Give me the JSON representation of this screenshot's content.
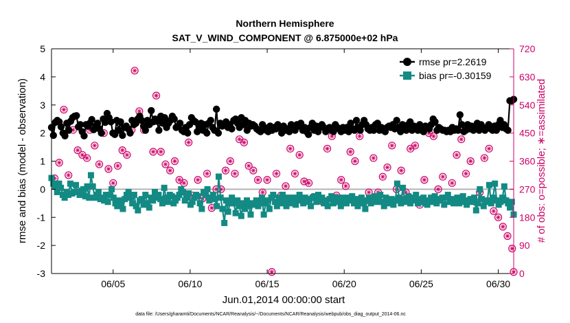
{
  "chart_data": {
    "type": "line",
    "title": "Northern Hemisphere",
    "subtitle": "SAT_V_WIND_COMPONENT @ 6.875000e+02 hPa",
    "xlabel": "Jun.01,2014 00:00:00 start",
    "ylabel": "rmse and bias (model - observation)",
    "y2label": "# of obs: o=possible; ∗=assimilated",
    "footnote": "data file: /Users/gharamti/Documents/NCAR/Reanalysis/~/Documents/NCAR/Reanalysis/webpub/obs_diag_output_2014-06.nc",
    "xlim": [
      1,
      31
    ],
    "ylim": [
      -3,
      5
    ],
    "y2lim": [
      0,
      720
    ],
    "x_ticks": [
      5,
      10,
      15,
      20,
      25,
      30
    ],
    "x_tick_labels": [
      "06/05",
      "06/10",
      "06/15",
      "06/20",
      "06/25",
      "06/30"
    ],
    "y_ticks": [
      "-3",
      "-2",
      "-1",
      "0",
      "1",
      "2",
      "3",
      "4",
      "5"
    ],
    "y2_ticks": [
      "0",
      "90",
      "180",
      "270",
      "360",
      "450",
      "540",
      "630",
      "720"
    ],
    "zero_line": 0,
    "colors": {
      "rmse": "#000000",
      "bias": "#138a84",
      "obs": "#cc0066",
      "zero": "#b3b3b3"
    },
    "series": [
      {
        "name": "rmse",
        "legend": "rmse pr=2.2619",
        "values": [
          2.2,
          1.92,
          2.38,
          2.45,
          2.4,
          2.22,
          2.0,
          1.9,
          2.35,
          2.1,
          2.42,
          2.55,
          2.6,
          2.62,
          2.22,
          2.3,
          2.05,
          1.9,
          2.3,
          2.25,
          2.35,
          2.48,
          2.12,
          2.25,
          2.35,
          2.15,
          2.0,
          2.5,
          2.38,
          2.7,
          2.55,
          2.4,
          2.0,
          1.95,
          2.45,
          2.1,
          2.4,
          1.92,
          2.2,
          2.25,
          2.15,
          2.0,
          2.45,
          2.3,
          2.35,
          2.5,
          2.6,
          2.45,
          2.25,
          2.1,
          2.45,
          2.3,
          2.8,
          2.4,
          2.5,
          2.42,
          2.1,
          2.6,
          2.35,
          2.55,
          2.2,
          2.35,
          2.45,
          2.6,
          2.5,
          2.2,
          2.25,
          2.35,
          2.1,
          2.05,
          2.2,
          2.0,
          2.3,
          2.55,
          2.45,
          2.4,
          2.05,
          2.2,
          2.35,
          2.1,
          2.3,
          2.0,
          2.35,
          2.45,
          2.2,
          2.1,
          2.85,
          2.0,
          2.35,
          2.25,
          2.3,
          2.4,
          2.2,
          2.3,
          2.15,
          2.45,
          2.5,
          2.35,
          2.2,
          2.55,
          2.3,
          2.45,
          2.1,
          2.35,
          2.25,
          2.3,
          2.25,
          2.15,
          2.1,
          2.05,
          2.3,
          2.2,
          2.1,
          2.05,
          2.25,
          2.1,
          2.2,
          2.15,
          2.3,
          2.2,
          2.0,
          2.25,
          2.1,
          2.15,
          2.05,
          2.3,
          2.25,
          2.1,
          2.3,
          2.25,
          2.35,
          2.1,
          2.2,
          2.05,
          1.95,
          2.2,
          2.35,
          2.1,
          2.25,
          2.05,
          2.2,
          2.3,
          2.2,
          2.05,
          2.15,
          2.2,
          2.1,
          2.05,
          2.3,
          2.2,
          2.15,
          2.05,
          2.2,
          2.1,
          2.2,
          2.05,
          2.35,
          2.15,
          2.1,
          2.45,
          2.2,
          2.1,
          2.3,
          2.45,
          2.3,
          2.15,
          2.1,
          2.2,
          2.1,
          2.3,
          2.35,
          2.1,
          2.2,
          2.1,
          2.05,
          2.2,
          2.25,
          2.2,
          2.3,
          2.15,
          2.45,
          2.2,
          2.05,
          2.3,
          2.2,
          2.1,
          2.3,
          2.4,
          2.1,
          2.25,
          2.2,
          2.1,
          2.3,
          2.1,
          2.05,
          2.25,
          2.2,
          2.15,
          2.3,
          2.5,
          2.4,
          2.1,
          2.2,
          2.15,
          2.1,
          2.1,
          2.05,
          2.1,
          2.05,
          2.2,
          2.1,
          2.15,
          2.1,
          2.65,
          2.3,
          2.05,
          2.1,
          2.3,
          2.15,
          2.25,
          2.1,
          2.2,
          2.35,
          2.1,
          2.3,
          2.2,
          2.1,
          2.2,
          2.3,
          2.15,
          2.1,
          2.25,
          2.1,
          2.3,
          2.45,
          2.2,
          2.3,
          2.15,
          2.1,
          3.15,
          3.15,
          3.2
        ]
      },
      {
        "name": "bias",
        "legend": "bias pr=-0.30159",
        "values": [
          0.4,
          0.2,
          0.1,
          -0.1,
          0.2,
          0.05,
          -0.2,
          -0.3,
          -0.1,
          -0.2,
          0.2,
          -0.15,
          -0.1,
          0.15,
          -0.1,
          -0.2,
          -0.05,
          0.0,
          -0.25,
          0.1,
          -0.3,
          0.5,
          0.1,
          -0.3,
          -0.2,
          -0.1,
          -0.35,
          -0.3,
          -0.4,
          -0.2,
          -0.45,
          -0.2,
          0.0,
          -0.3,
          -0.5,
          -0.6,
          -0.4,
          -0.55,
          -0.7,
          -0.35,
          -0.2,
          -0.1,
          -0.3,
          -0.5,
          -0.2,
          -0.6,
          -0.75,
          -0.4,
          -0.35,
          -0.55,
          -0.2,
          -0.5,
          -0.65,
          -0.3,
          -0.4,
          -0.1,
          -0.3,
          -0.2,
          -0.35,
          -0.5,
          0.05,
          -0.3,
          -0.45,
          -0.2,
          -0.25,
          -0.5,
          -0.4,
          -0.3,
          -0.2,
          0.0,
          -0.1,
          -0.4,
          -0.3,
          -0.15,
          -0.55,
          -0.45,
          -0.3,
          -0.2,
          -0.25,
          -0.5,
          -0.7,
          -0.1,
          -0.2,
          0.0,
          -0.4,
          -0.3,
          -0.2,
          -0.35,
          -0.6,
          0.45,
          -0.3,
          -0.7,
          -1.2,
          -0.4,
          -0.8,
          -0.5,
          -0.3,
          -0.5,
          -0.85,
          -0.4,
          -0.6,
          -0.95,
          -0.5,
          -0.7,
          -0.4,
          -0.6,
          -0.9,
          -0.5,
          -0.55,
          -0.4,
          -0.6,
          -0.5,
          -0.3,
          -0.9,
          -0.5,
          -0.4,
          -0.7,
          -0.3,
          -0.2,
          -0.45,
          -0.6,
          -0.3,
          -0.5,
          -0.2,
          -0.4,
          -0.6,
          -0.3,
          -0.5,
          -0.45,
          -0.3,
          -0.55,
          -0.35,
          -0.2,
          -0.4,
          -0.5,
          -0.3,
          -0.45,
          -0.35,
          -0.6,
          -0.3,
          -0.25,
          -0.45,
          -0.2,
          -0.4,
          -0.3,
          -0.5,
          -0.4,
          -0.6,
          -0.35,
          -0.25,
          -0.5,
          -0.4,
          -0.3,
          -0.45,
          -0.6,
          -0.3,
          -0.4,
          -0.5,
          -0.3,
          -0.4,
          -0.25,
          -0.5,
          -0.35,
          -0.6,
          -0.4,
          -0.3,
          -0.5,
          -0.7,
          -0.4,
          -0.3,
          -0.5,
          -0.35,
          -0.25,
          -0.45,
          -0.3,
          -0.2,
          -0.45,
          -0.6,
          -0.3,
          -0.4,
          -0.5,
          -0.35,
          -0.55,
          -0.4,
          0.2,
          -0.3,
          -0.5,
          0.05,
          -0.35,
          -0.45,
          -0.25,
          -0.5,
          -0.4,
          -0.3,
          -0.2,
          -0.5,
          -0.35,
          -0.45,
          -0.3,
          -0.5,
          -0.55,
          -0.4,
          -0.3,
          -0.45,
          -0.25,
          -0.5,
          -0.35,
          -0.4,
          -0.3,
          -0.55,
          -0.3,
          -0.2,
          -0.45,
          -0.35,
          -0.5,
          -0.4,
          -0.3,
          -0.5,
          -0.35,
          -0.25,
          -0.45,
          -0.55,
          -0.4,
          -0.35,
          -0.45,
          -0.3,
          -0.75,
          -0.5,
          0.0,
          -0.35,
          -0.6,
          -0.45,
          -0.4,
          0.15,
          -0.5,
          -0.3,
          0.2,
          -0.4,
          -0.55,
          -0.45,
          -0.3,
          0.1,
          -0.4,
          -0.5,
          -0.65,
          -0.45,
          -0.9
        ]
      }
    ],
    "obs_series": {
      "name": "# of obs",
      "axis": "right",
      "x": [
        1.2,
        1.5,
        1.8,
        2.1,
        2.4,
        2.7,
        3.0,
        3.3,
        3.5,
        3.8,
        4.1,
        4.4,
        4.7,
        5.0,
        5.3,
        5.6,
        5.9,
        6.2,
        6.4,
        6.7,
        7.0,
        7.3,
        7.6,
        7.8,
        8.1,
        8.4,
        8.7,
        9.0,
        9.3,
        9.6,
        9.9,
        10.2,
        10.5,
        10.8,
        11.1,
        11.4,
        11.7,
        12.0,
        12.3,
        12.6,
        12.9,
        13.2,
        13.5,
        13.8,
        14.1,
        14.4,
        14.7,
        15.0,
        15.3,
        15.6,
        15.9,
        16.2,
        16.5,
        16.8,
        17.1,
        17.4,
        17.7,
        18.0,
        18.3,
        18.6,
        18.9,
        19.2,
        19.5,
        19.8,
        20.1,
        20.4,
        20.7,
        21.0,
        21.3,
        21.6,
        21.9,
        22.2,
        22.5,
        22.8,
        23.1,
        23.4,
        23.7,
        24.0,
        24.3,
        24.6,
        24.9,
        25.2,
        25.5,
        25.8,
        26.1,
        26.4,
        26.7,
        27.0,
        27.3,
        27.6,
        27.9,
        28.2,
        28.5,
        28.8,
        29.1,
        29.4,
        29.7,
        30.0,
        30.3,
        30.6,
        30.9,
        31.0
      ],
      "values": [
        305,
        355,
        525,
        315,
        460,
        395,
        380,
        370,
        460,
        410,
        350,
        450,
        335,
        290,
        345,
        395,
        380,
        460,
        650,
        520,
        460,
        480,
        390,
        570,
        390,
        350,
        330,
        360,
        300,
        290,
        420,
        250,
        300,
        240,
        320,
        210,
        270,
        270,
        330,
        360,
        320,
        430,
        420,
        345,
        330,
        300,
        260,
        300,
        5,
        320,
        250,
        280,
        400,
        320,
        380,
        295,
        290,
        245,
        470,
        230,
        400,
        440,
        250,
        300,
        280,
        390,
        360,
        440,
        230,
        260,
        370,
        260,
        310,
        340,
        410,
        270,
        330,
        260,
        400,
        410,
        220,
        300,
        450,
        440,
        270,
        310,
        240,
        290,
        380,
        430,
        320,
        360,
        230,
        260,
        370,
        400,
        200,
        180,
        150,
        120,
        80,
        5
      ]
    },
    "legend_position": "top-right"
  }
}
